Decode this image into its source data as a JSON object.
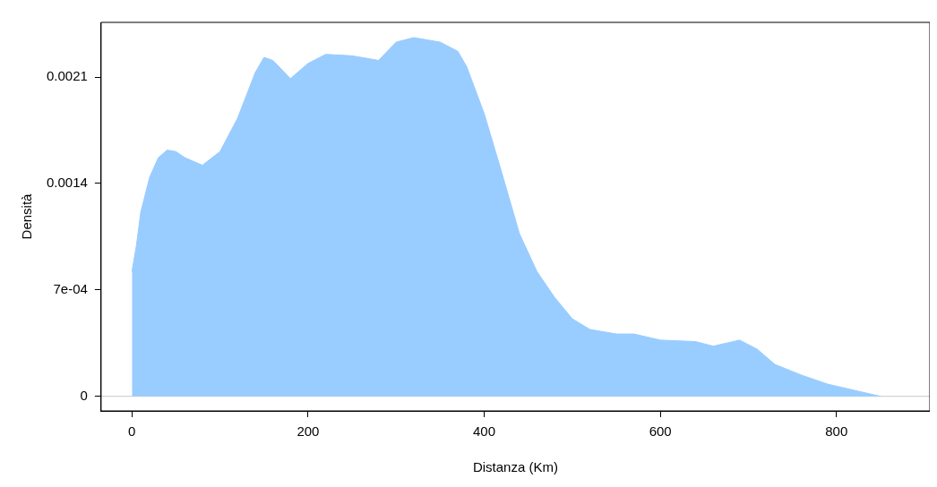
{
  "chart_data": {
    "type": "area",
    "xlabel": "Distanza (Km)",
    "ylabel": "Densità",
    "x": [
      0,
      5,
      10,
      20,
      30,
      40,
      50,
      60,
      80,
      100,
      120,
      140,
      150,
      160,
      180,
      200,
      220,
      250,
      280,
      300,
      320,
      350,
      370,
      380,
      400,
      420,
      440,
      460,
      480,
      500,
      520,
      550,
      570,
      600,
      640,
      660,
      690,
      710,
      730,
      760,
      790,
      820,
      850
    ],
    "series": [
      {
        "color": "#99ccff",
        "values": [
          0.00082,
          0.00099,
          0.00121,
          0.00144,
          0.00157,
          0.00162,
          0.00161,
          0.00157,
          0.00152,
          0.00161,
          0.00183,
          0.00213,
          0.00223,
          0.00221,
          0.00209,
          0.00219,
          0.00225,
          0.00224,
          0.00221,
          0.00233,
          0.00236,
          0.00233,
          0.00227,
          0.00217,
          0.00186,
          0.00147,
          0.00107,
          0.00082,
          0.00065,
          0.00051,
          0.00044,
          0.00041,
          0.00041,
          0.00037,
          0.00036,
          0.00033,
          0.00037,
          0.00031,
          0.00021,
          0.00014,
          8e-05,
          4e-05,
          0
        ]
      }
    ],
    "xlim": [
      -35,
      906
    ],
    "ylim": [
      -9.6e-05,
      0.00246
    ],
    "xticks": [
      0,
      200,
      400,
      600,
      800
    ],
    "yticks": [
      0,
      {
        "value": 0.0007,
        "label": "7e-04"
      },
      0.0014,
      0.0021
    ],
    "ref_lines": [
      {
        "axis": "y",
        "value": 0,
        "color": "#c8c8c8"
      }
    ],
    "grid": false,
    "legend": false
  }
}
